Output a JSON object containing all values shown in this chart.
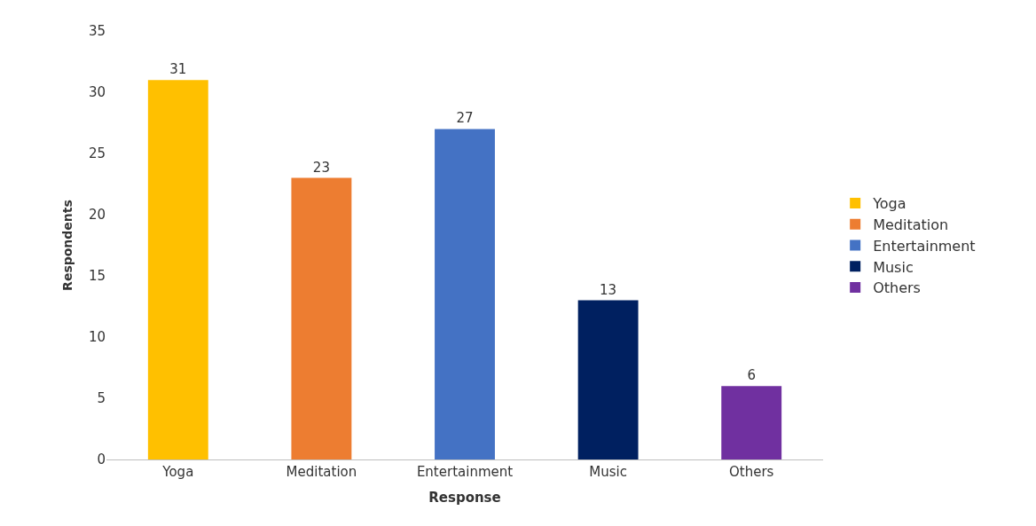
{
  "chart_data": {
    "type": "bar",
    "xlabel": "Response",
    "ylabel": "Respondents",
    "categories": [
      "Yoga",
      "Meditation",
      "Entertainment",
      "Music",
      "Others"
    ],
    "series": [
      {
        "name": "Yoga",
        "color": "#ffc000",
        "values": [
          31,
          null,
          null,
          null,
          null
        ]
      },
      {
        "name": "Meditation",
        "color": "#ed7d31",
        "values": [
          null,
          23,
          null,
          null,
          null
        ]
      },
      {
        "name": "Entertainment",
        "color": "#4472c4",
        "values": [
          null,
          null,
          27,
          null,
          null
        ]
      },
      {
        "name": "Music",
        "color": "#002060",
        "values": [
          null,
          null,
          null,
          13,
          null
        ]
      },
      {
        "name": "Others",
        "color": "#7030a0",
        "values": [
          null,
          null,
          null,
          null,
          6
        ]
      }
    ],
    "ylim": [
      0,
      35
    ],
    "yticks": [
      0,
      5,
      10,
      15,
      20,
      25,
      30,
      35
    ],
    "data_labels": true,
    "legend": "right",
    "grid": false
  }
}
